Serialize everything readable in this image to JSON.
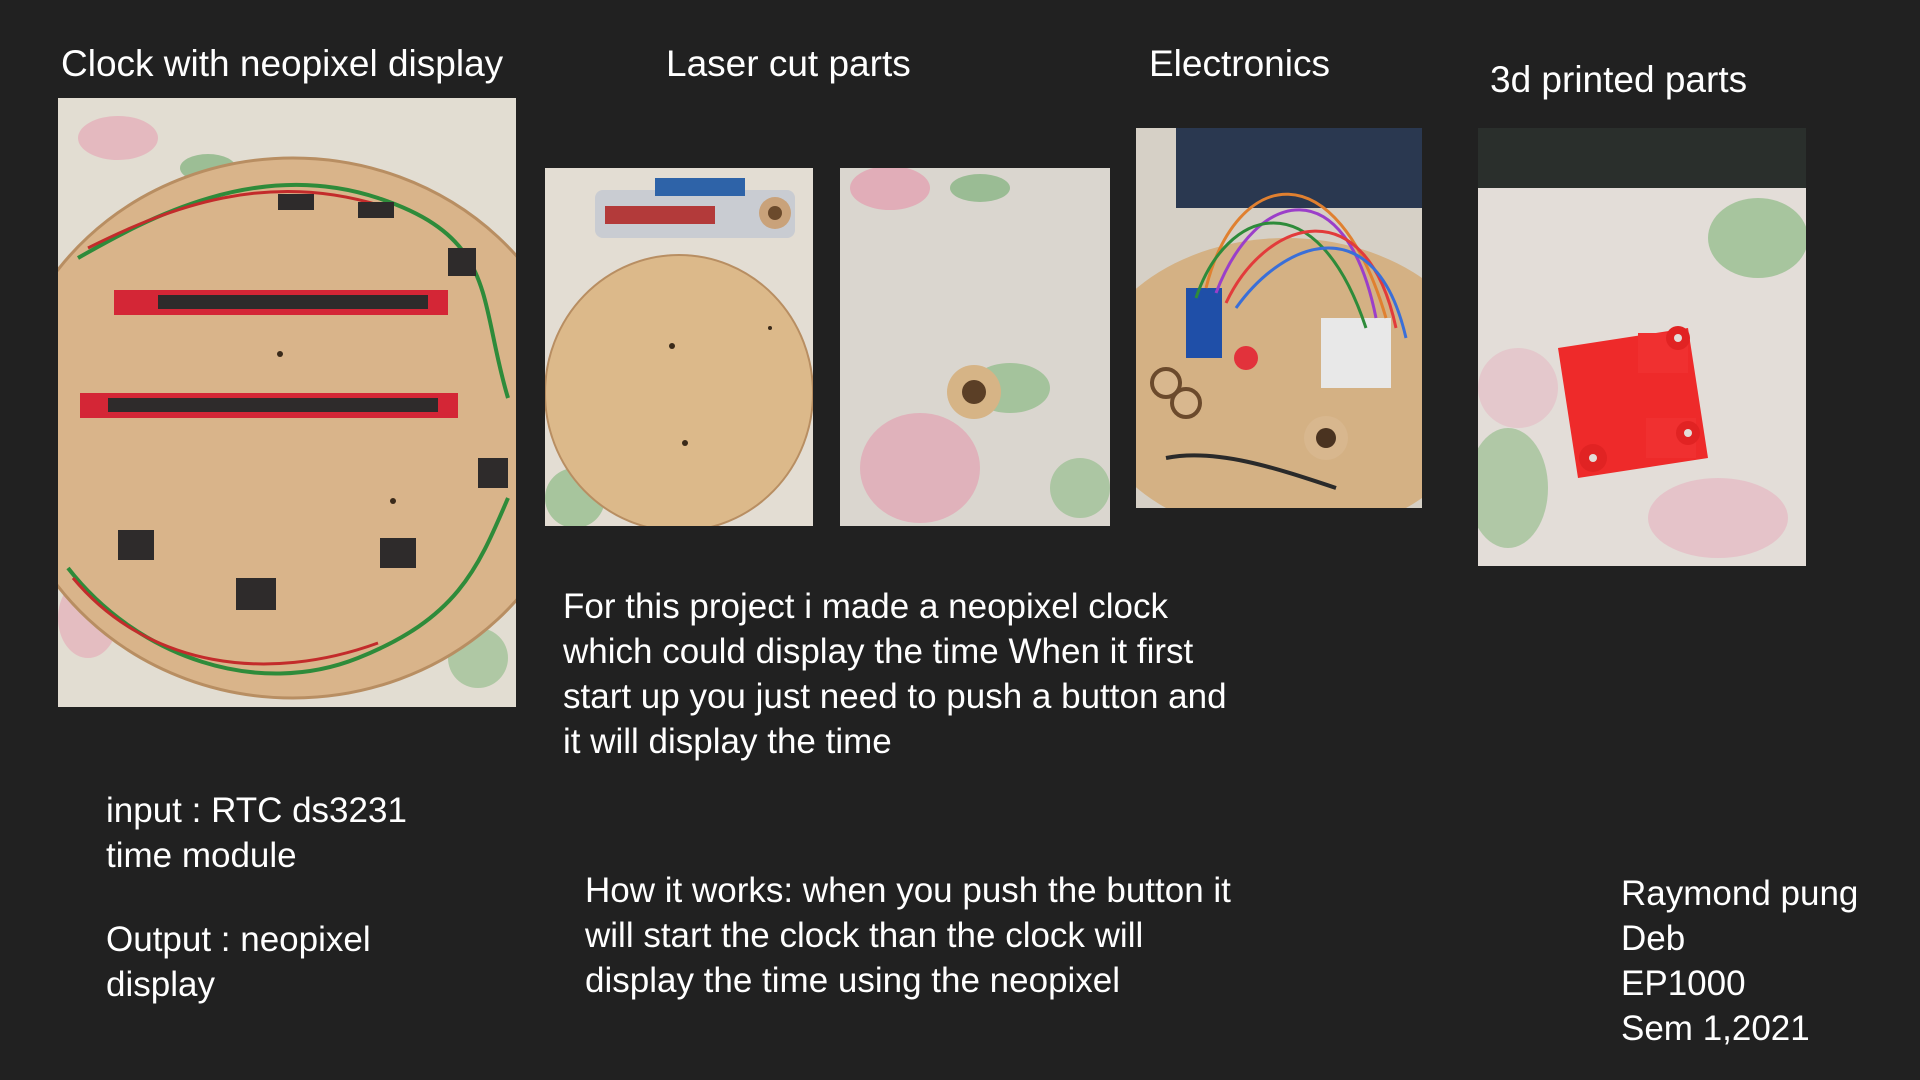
{
  "titles": {
    "clock": "Clock with neopixel display",
    "laser": "Laser cut parts",
    "electronics": "Electronics",
    "printed": "3d printed parts"
  },
  "description": {
    "lines": [
      "For this project i made a neopixel clock",
      "which could display the time When it first",
      "start up you just need to push a button and",
      "it will display the time"
    ]
  },
  "io": {
    "input_lines": [
      "input : RTC ds3231",
      "time module"
    ],
    "output_lines": [
      "Output : neopixel",
      "display"
    ]
  },
  "how_it_works": {
    "lines": [
      "How it works: when you push the button it",
      "will start the clock than the clock will",
      "display the time using the neopixel"
    ]
  },
  "credits": {
    "lines": [
      "Raymond pung",
      "Deb",
      "EP1000",
      "Sem 1,2021"
    ]
  },
  "colors": {
    "background": "#212121",
    "text": "#ffffff",
    "wood": "#dcb98a",
    "pcb_red": "#d8263a",
    "print_red": "#ee2a2a",
    "cloth": "#e3ddd3"
  },
  "photos": [
    {
      "name": "clock-photo",
      "subject": "neopixel clock wooden base"
    },
    {
      "name": "laser-cut-base-photo",
      "subject": "laser cut wooden disc"
    },
    {
      "name": "laser-cut-ring-photo",
      "subject": "laser cut wooden ring"
    },
    {
      "name": "electronics-photo",
      "subject": "breadboard wiring"
    },
    {
      "name": "printed-part-photo",
      "subject": "red 3d printed bracket"
    }
  ]
}
